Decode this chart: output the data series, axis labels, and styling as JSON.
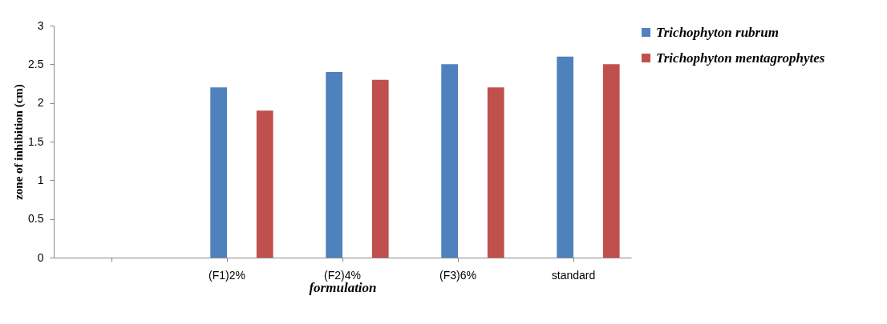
{
  "chart_data": {
    "type": "bar",
    "xlabel": "formulation",
    "ylabel": "zone of inhibition (cm)",
    "categories": [
      null,
      "(F1)2%",
      "(F2)4%",
      "(F3)6%",
      "standard"
    ],
    "series": [
      {
        "name": "Trichophyton rubrum",
        "color": "#4f81bd",
        "values": [
          0,
          2.2,
          2.4,
          2.5,
          2.6
        ]
      },
      {
        "name": "Trichophyton mentagrophytes",
        "color": "#c0504d",
        "values": [
          null,
          1.9,
          2.3,
          2.2,
          2.5
        ]
      }
    ],
    "ylim": [
      0,
      3
    ],
    "yticks": [
      0,
      0.5,
      1,
      1.5,
      2,
      2.5,
      3
    ],
    "grid": false,
    "legend": "right"
  }
}
